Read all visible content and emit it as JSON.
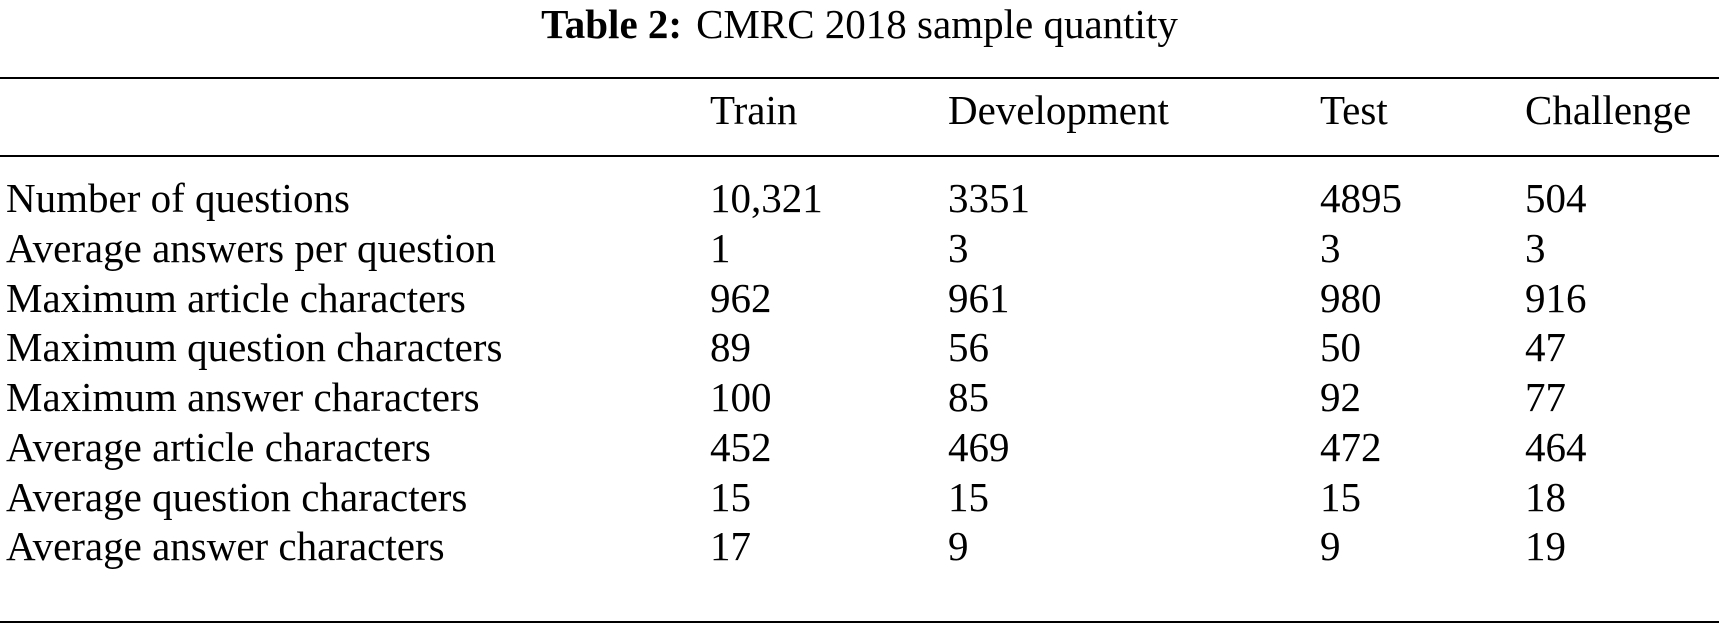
{
  "caption": {
    "label": "Table 2:",
    "text": "CMRC 2018 sample quantity"
  },
  "table": {
    "columns": [
      "",
      "Train",
      "Development",
      "Test",
      "Challenge"
    ],
    "rows": [
      [
        "Number of questions",
        "10,321",
        "3351",
        "4895",
        "504"
      ],
      [
        "Average answers per question",
        "1",
        "3",
        "3",
        "3"
      ],
      [
        "Maximum article characters",
        "962",
        "961",
        "980",
        "916"
      ],
      [
        "Maximum question characters",
        "89",
        "56",
        "50",
        "47"
      ],
      [
        "Maximum answer characters",
        "100",
        "85",
        "92",
        "77"
      ],
      [
        "Average article characters",
        "452",
        "469",
        "472",
        "464"
      ],
      [
        "Average question characters",
        "15",
        "15",
        "15",
        "18"
      ],
      [
        "Average answer characters",
        "17",
        "9",
        "9",
        "19"
      ]
    ]
  }
}
